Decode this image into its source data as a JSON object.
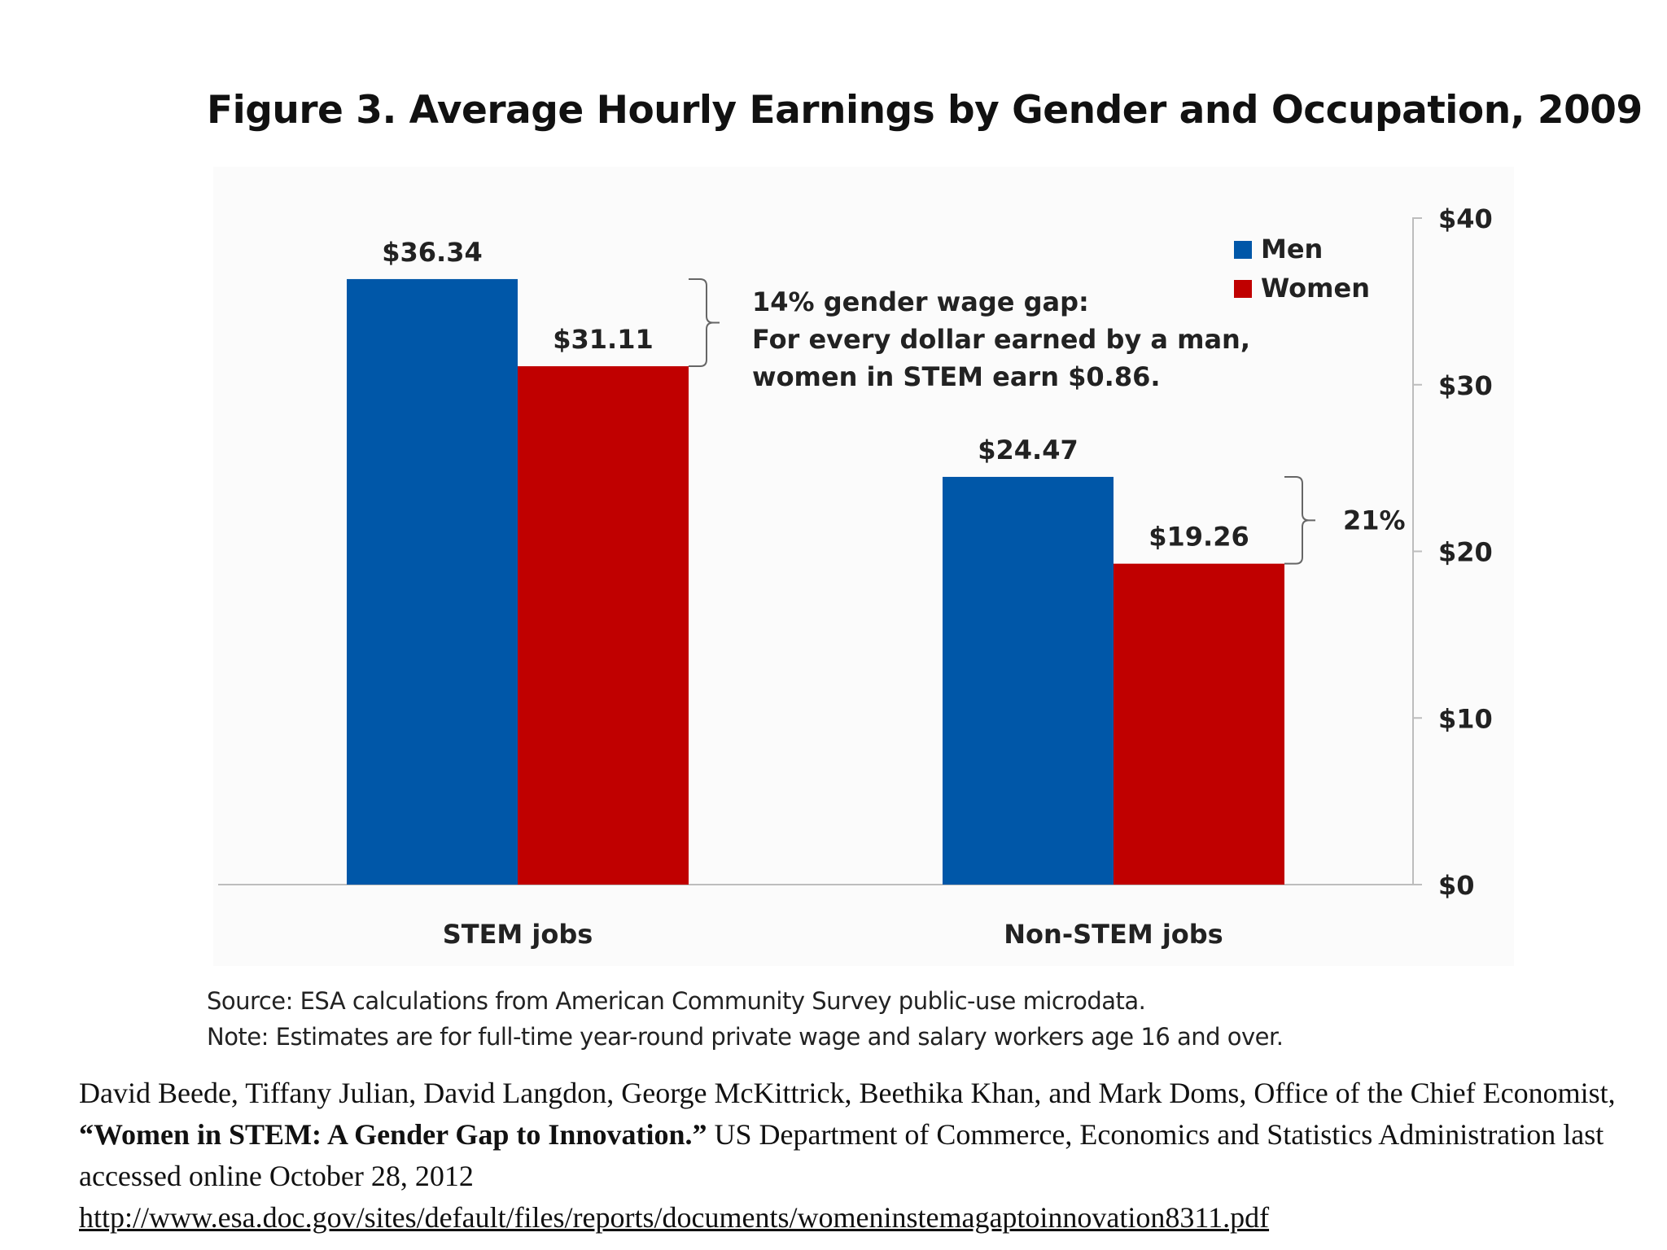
{
  "chart_data": {
    "type": "bar",
    "title": "Figure 3. Average Hourly Earnings by Gender and Occupation, 2009",
    "categories": [
      "STEM jobs",
      "Non-STEM jobs"
    ],
    "series": [
      {
        "name": "Men",
        "color": "#0057A8",
        "values": [
          36.34,
          24.47
        ],
        "labels": [
          "$36.34",
          "$24.47"
        ]
      },
      {
        "name": "Women",
        "color": "#C00000",
        "values": [
          31.11,
          19.26
        ],
        "labels": [
          "$31.11",
          "$19.26"
        ]
      }
    ],
    "ylim": [
      0,
      40
    ],
    "yticks": [
      0,
      10,
      20,
      30,
      40
    ],
    "ytick_labels": [
      "$0",
      "$10",
      "$20",
      "$30",
      "$40"
    ],
    "y_axis_side": "right",
    "legend_position": "top-right",
    "annotations": [
      {
        "category": "STEM jobs",
        "lines": [
          "14% gender wage gap:",
          "For every dollar earned by a man,",
          "women in STEM earn $0.86."
        ]
      },
      {
        "category": "Non-STEM jobs",
        "lines": [
          "21%"
        ]
      }
    ]
  },
  "notes": {
    "source": "Source:  ESA calculations from American Community Survey public-use microdata.",
    "note": "Note: Estimates are for full-time year-round private wage and salary workers age 16 and over."
  },
  "citation": {
    "authors": "David Beede, Tiffany Julian, David Langdon, George McKittrick, Beethika Khan, and Mark Doms, Office of the Chief Economist,",
    "title": "“Women in STEM: A Gender Gap to Innovation.”",
    "publisher": "US Department of Commerce, Economics and Statistics Administration last accessed online October 28, 2012",
    "url": "http://www.esa.doc.gov/sites/default/files/reports/documents/womeninstemagaptoinnovation8311.pdf"
  }
}
